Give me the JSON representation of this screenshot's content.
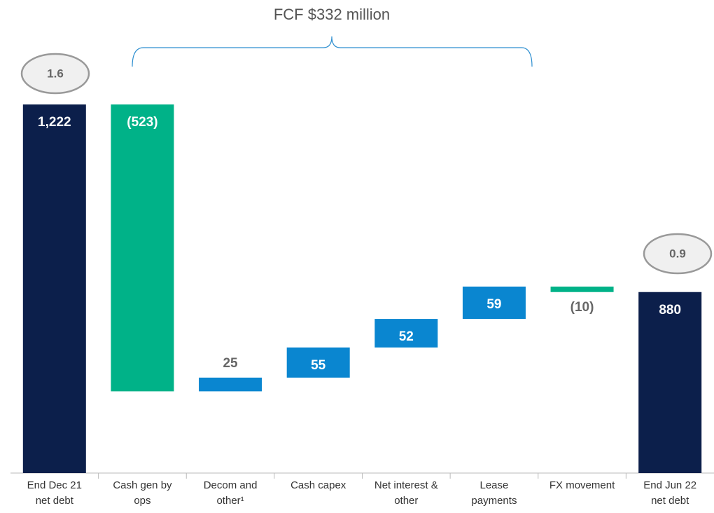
{
  "chart_data": {
    "type": "waterfall",
    "annotations": [
      "FCF $332 million",
      "1.6",
      "0.9"
    ],
    "categories": [
      [
        "End Dec 21",
        "net debt"
      ],
      [
        "Cash gen by",
        "ops"
      ],
      [
        "Decom and",
        "other¹"
      ],
      [
        "Cash capex"
      ],
      [
        "Net interest &",
        "other"
      ],
      [
        "Lease",
        "payments"
      ],
      [
        "FX movement"
      ],
      [
        "End Jun 22",
        "net debt"
      ]
    ],
    "values": [
      1222,
      -523,
      25,
      55,
      52,
      59,
      -10,
      880
    ],
    "value_labels": [
      "1,222",
      "(523)",
      "25",
      "55",
      "52",
      "59",
      "(10)",
      "880"
    ],
    "totals": [
      true,
      false,
      false,
      false,
      false,
      false,
      false,
      true
    ],
    "colors": [
      "#0c1f4b",
      "#00b288",
      "#0a86d0",
      "#0a86d0",
      "#0a86d0",
      "#0a86d0",
      "#00b288",
      "#0c1f4b"
    ],
    "ylim": [
      550,
      1240
    ]
  }
}
